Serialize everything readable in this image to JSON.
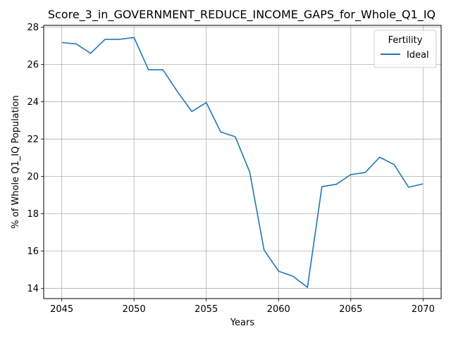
{
  "chart_data": {
    "type": "line",
    "title": "Score_3_in_GOVERNMENT_REDUCE_INCOME_GAPS_for_Whole_Q1_IQ",
    "xlabel": "Years",
    "ylabel": "% of Whole Q1_IQ Population",
    "xlim": [
      2043.75,
      2071.25
    ],
    "ylim": [
      13.45,
      28.1
    ],
    "xticks": [
      2045,
      2050,
      2055,
      2060,
      2065,
      2070
    ],
    "yticks": [
      14,
      16,
      18,
      20,
      22,
      24,
      26,
      28
    ],
    "grid": true,
    "legend": {
      "title": "Fertility",
      "placement": "top-right"
    },
    "series": [
      {
        "name": "Ideal",
        "color": "#1f77b4",
        "x": [
          2045,
          2046,
          2047,
          2048,
          2049,
          2050,
          2051,
          2052,
          2053,
          2054,
          2055,
          2056,
          2057,
          2058,
          2059,
          2060,
          2061,
          2062,
          2063,
          2064,
          2065,
          2066,
          2067,
          2068,
          2069,
          2070
        ],
        "values": [
          27.18,
          27.1,
          26.6,
          27.35,
          27.35,
          27.45,
          25.72,
          25.72,
          24.55,
          23.48,
          23.96,
          22.38,
          22.13,
          20.25,
          16.05,
          14.92,
          14.65,
          14.05,
          19.45,
          19.58,
          20.1,
          20.21,
          21.03,
          20.63,
          19.42,
          19.6
        ]
      }
    ]
  }
}
